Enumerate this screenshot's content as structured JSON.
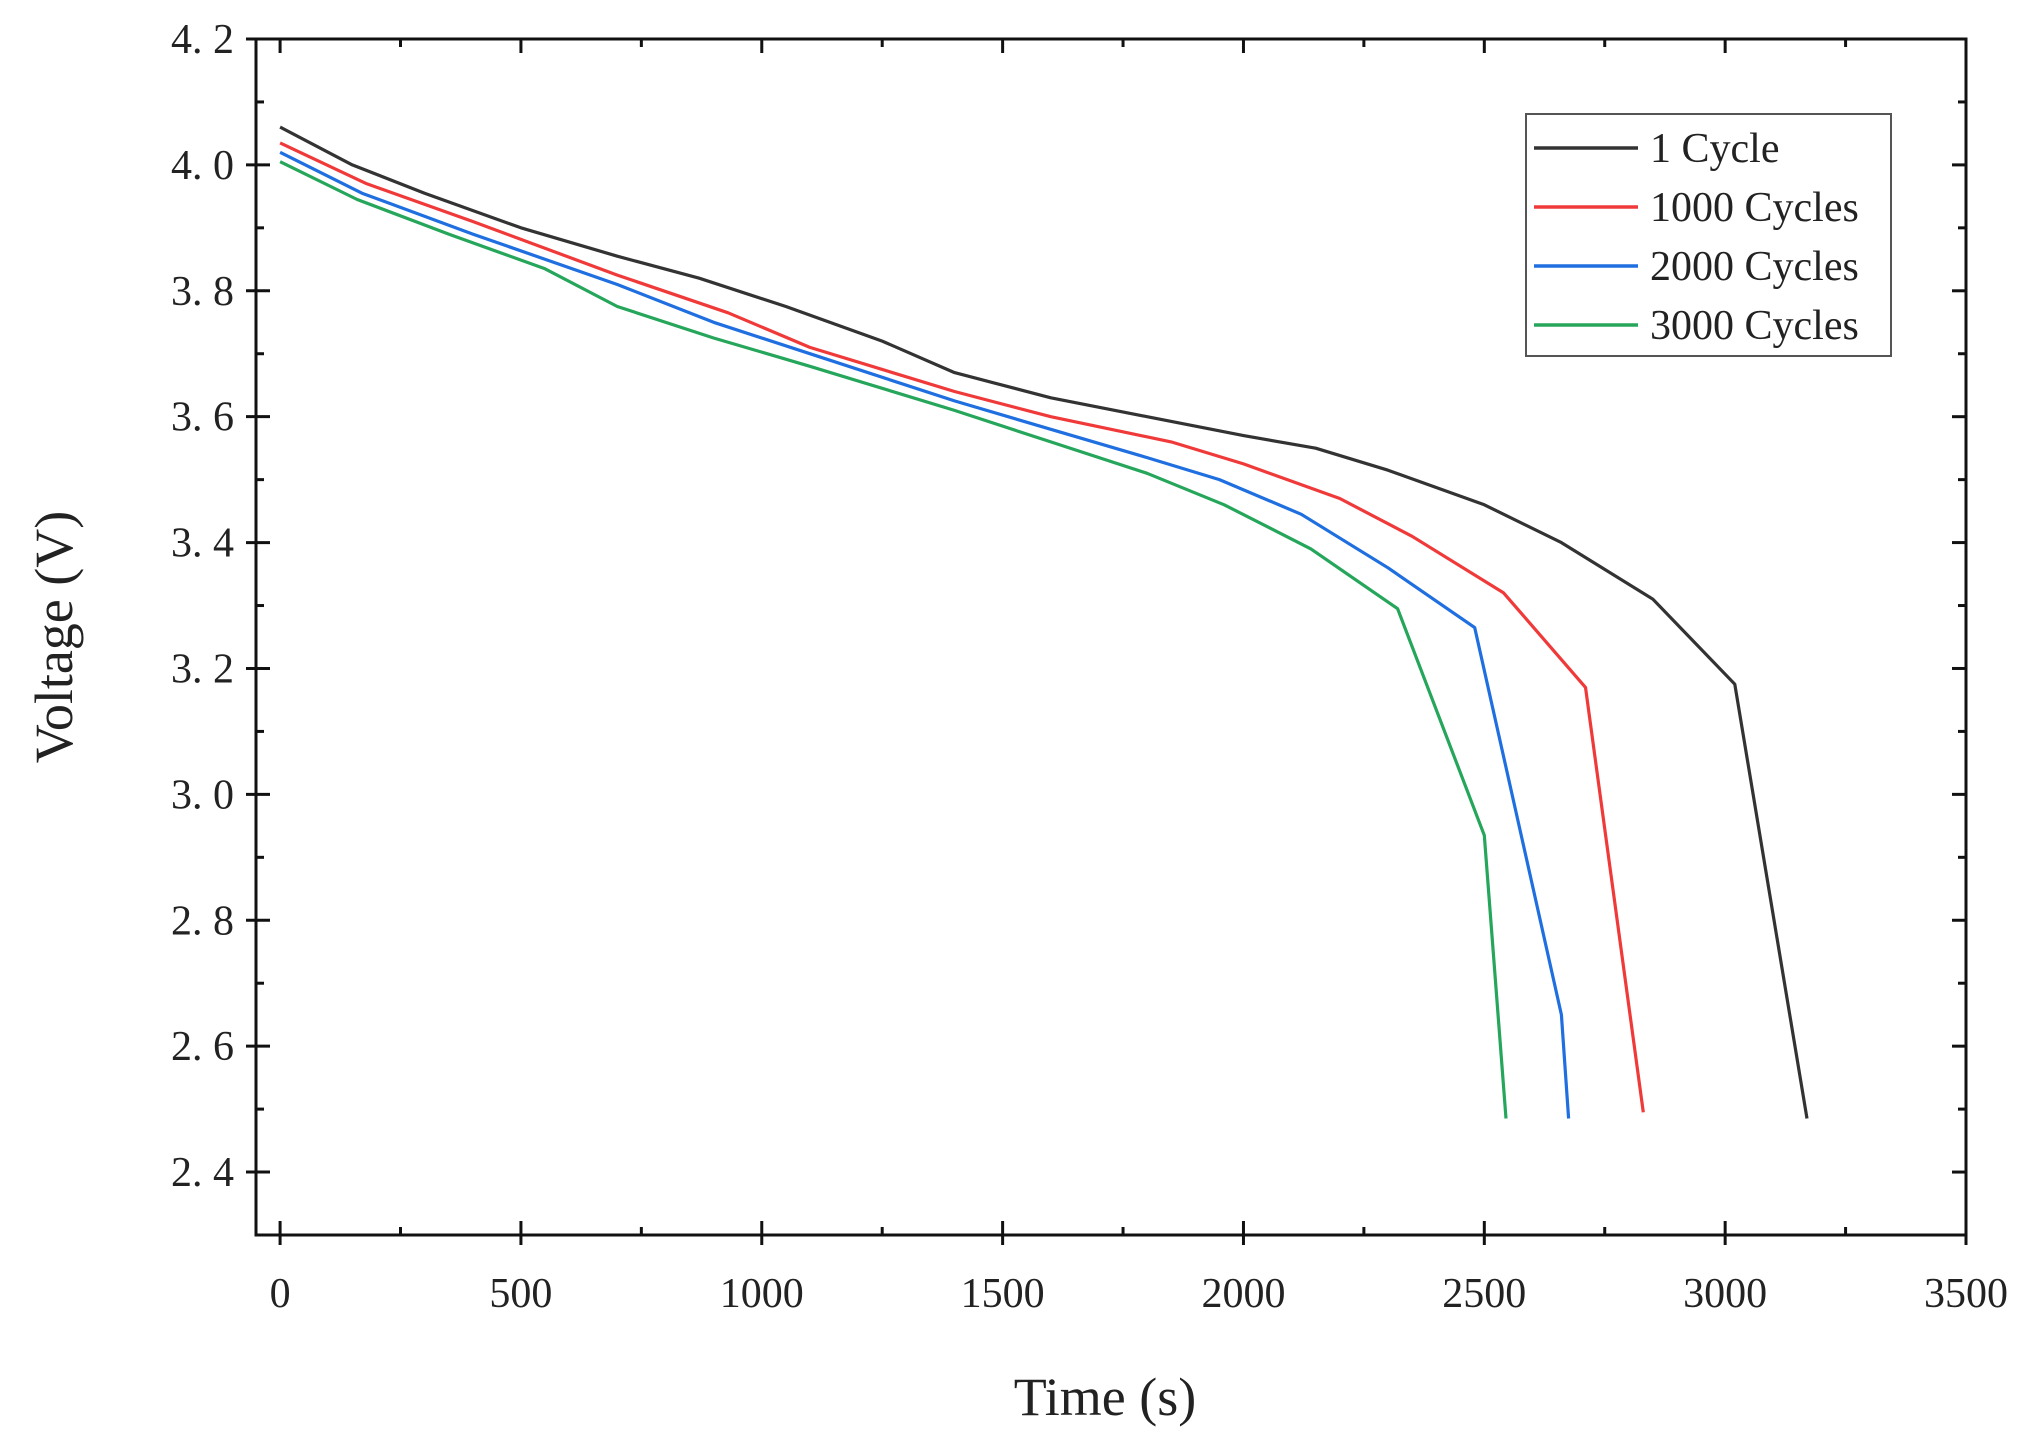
{
  "chart_data": {
    "type": "line",
    "title": "",
    "xlabel": "Time (s)",
    "ylabel": "Voltage (V)",
    "xlim": [
      -50,
      3500
    ],
    "ylim": [
      2.3,
      4.2
    ],
    "xticks": [
      0,
      500,
      1000,
      1500,
      2000,
      2500,
      3000,
      3500
    ],
    "yticks": [
      2.4,
      2.6,
      2.8,
      3.0,
      3.2,
      3.4,
      3.6,
      3.8,
      4.0,
      4.2
    ],
    "xtick_labels": [
      "0",
      "500",
      "1000",
      "1500",
      "2000",
      "2500",
      "3000",
      "3500"
    ],
    "ytick_labels": [
      "2. 4",
      "2. 6",
      "2. 8",
      "3. 0",
      "3. 2",
      "3. 4",
      "3. 6",
      "3. 8",
      "4. 0",
      "4. 2"
    ],
    "grid": false,
    "legend_position": "top-right",
    "series": [
      {
        "name": "1 Cycle",
        "color": "#333333",
        "x": [
          0,
          150,
          300,
          500,
          700,
          870,
          1050,
          1250,
          1400,
          1600,
          1800,
          2000,
          2150,
          2300,
          2500,
          2660,
          2850,
          3020,
          3170
        ],
        "y": [
          4.06,
          4.0,
          3.955,
          3.9,
          3.855,
          3.82,
          3.775,
          3.72,
          3.67,
          3.63,
          3.6,
          3.57,
          3.55,
          3.515,
          3.46,
          3.4,
          3.31,
          3.175,
          2.485
        ]
      },
      {
        "name": "1000 Cycles",
        "color": "#f03a3a",
        "x": [
          0,
          180,
          400,
          700,
          930,
          1100,
          1400,
          1600,
          1850,
          2000,
          2200,
          2350,
          2540,
          2710,
          2830
        ],
        "y": [
          4.035,
          3.97,
          3.91,
          3.825,
          3.765,
          3.71,
          3.64,
          3.6,
          3.56,
          3.525,
          3.47,
          3.41,
          3.32,
          3.17,
          2.495
        ]
      },
      {
        "name": "2000 Cycles",
        "color": "#1f6fe0",
        "x": [
          0,
          170,
          400,
          700,
          900,
          1100,
          1400,
          1600,
          1800,
          1950,
          2120,
          2300,
          2480,
          2660,
          2675
        ],
        "y": [
          4.02,
          3.955,
          3.89,
          3.81,
          3.75,
          3.7,
          3.625,
          3.58,
          3.535,
          3.5,
          3.445,
          3.36,
          3.265,
          2.65,
          2.485
        ]
      },
      {
        "name": "3000 Cycles",
        "color": "#26a65b",
        "x": [
          0,
          160,
          350,
          550,
          700,
          900,
          1100,
          1400,
          1600,
          1800,
          1960,
          2140,
          2320,
          2500,
          2545
        ],
        "y": [
          4.005,
          3.945,
          3.89,
          3.835,
          3.775,
          3.725,
          3.68,
          3.61,
          3.56,
          3.51,
          3.46,
          3.39,
          3.295,
          2.935,
          2.485
        ]
      }
    ]
  }
}
